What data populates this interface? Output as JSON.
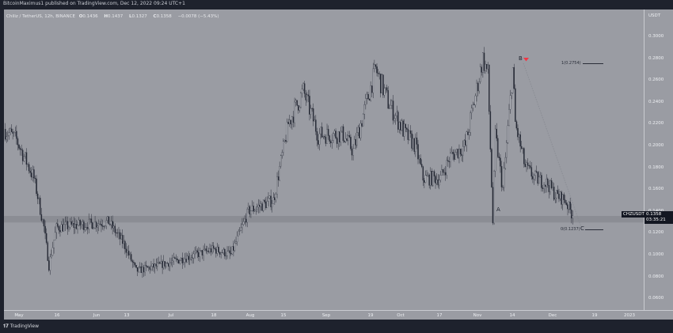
{
  "header": {
    "published": "BitcoinMaximus1 published on TradingView.com, Dec 12, 2022 09:24 UTC+1"
  },
  "legend": {
    "symbol": "Chiliz / TetherUS, 12h, BINANCE",
    "o_label": "O",
    "o": "0.1436",
    "h_label": "H",
    "h": "0.1437",
    "l_label": "L",
    "l": "0.1327",
    "c_label": "C",
    "c": "0.1358",
    "change": "−0.0078 (−5.43%)"
  },
  "price_axis": {
    "unit": "USDT",
    "ticks": [
      "0.3000",
      "0.2800",
      "0.2600",
      "0.2400",
      "0.2200",
      "0.2000",
      "0.1800",
      "0.1600",
      "0.1400",
      "0.1200",
      "0.1000",
      "0.0800",
      "0.0600"
    ]
  },
  "time_axis": {
    "ticks": [
      "May",
      "16",
      "Jun",
      "13",
      "Jul",
      "18",
      "Aug",
      "15",
      "Sep",
      "19",
      "Oct",
      "17",
      "Nov",
      "14",
      "Dec",
      "19",
      "2023"
    ]
  },
  "current": {
    "symbol": "CHZUSDT",
    "price": "0.1358",
    "countdown": "03:35:21"
  },
  "annotations": {
    "a": "A",
    "b": "B",
    "c": "C",
    "fib1": "1(0.2754)",
    "fib0": "0(0.1237)",
    "marker_color": "#f23645"
  },
  "footer": {
    "brand": "TradingView"
  },
  "colors": {
    "background": "#9a9ca3",
    "frame": "#1e222d",
    "support_band": "#8b8d94"
  },
  "chart_data": {
    "type": "candlestick",
    "title": "Chiliz / TetherUS, 12h, BINANCE",
    "ylim": [
      0.05,
      0.32
    ],
    "support_zone": [
      0.1295,
      0.1355
    ],
    "fib_levels": [
      {
        "label": "1",
        "value": 0.2754
      },
      {
        "label": "0",
        "value": 0.1237
      }
    ],
    "close_path": [
      [
        "2022-04-25",
        0.215
      ],
      [
        "2022-04-30",
        0.205
      ],
      [
        "2022-05-07",
        0.17
      ],
      [
        "2022-05-11",
        0.125
      ],
      [
        "2022-05-13",
        0.09
      ],
      [
        "2022-05-16",
        0.125
      ],
      [
        "2022-06-06",
        0.13
      ],
      [
        "2022-06-12",
        0.11
      ],
      [
        "2022-06-17",
        0.085
      ],
      [
        "2022-07-01",
        0.093
      ],
      [
        "2022-07-18",
        0.105
      ],
      [
        "2022-07-25",
        0.1
      ],
      [
        "2022-08-01",
        0.14
      ],
      [
        "2022-08-11",
        0.15
      ],
      [
        "2022-08-17",
        0.22
      ],
      [
        "2022-08-23",
        0.25
      ],
      [
        "2022-08-29",
        0.21
      ],
      [
        "2022-09-08",
        0.21
      ],
      [
        "2022-09-12",
        0.195
      ],
      [
        "2022-09-21",
        0.27
      ],
      [
        "2022-09-26",
        0.24
      ],
      [
        "2022-10-03",
        0.21
      ],
      [
        "2022-10-07",
        0.2
      ],
      [
        "2022-10-10",
        0.17
      ],
      [
        "2022-10-17",
        0.17
      ],
      [
        "2022-10-21",
        0.19
      ],
      [
        "2022-10-27",
        0.2
      ],
      [
        "2022-11-03",
        0.28
      ],
      [
        "2022-11-05",
        0.265
      ],
      [
        "2022-11-07",
        0.13
      ],
      [
        "2022-11-08",
        0.21
      ],
      [
        "2022-11-11",
        0.16
      ],
      [
        "2022-11-15",
        0.27
      ],
      [
        "2022-11-16",
        0.22
      ],
      [
        "2022-11-20",
        0.18
      ],
      [
        "2022-11-24",
        0.17
      ],
      [
        "2022-11-29",
        0.165
      ],
      [
        "2022-12-02",
        0.155
      ],
      [
        "2022-12-06",
        0.15
      ],
      [
        "2022-12-09",
        0.1358
      ]
    ]
  }
}
